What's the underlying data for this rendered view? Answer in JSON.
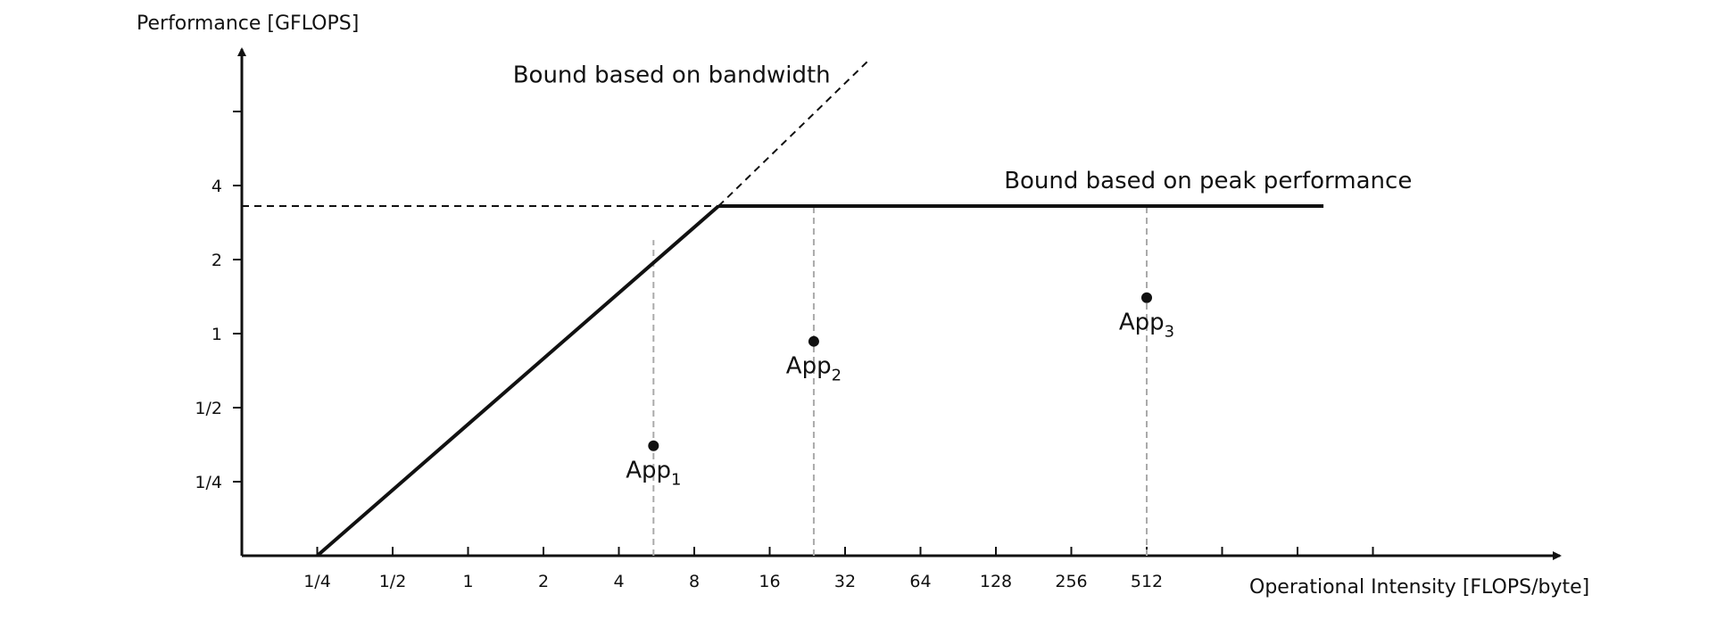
{
  "chart_data": {
    "type": "line",
    "title": "",
    "xlabel": "Operational Intensity [FLOPS/byte]",
    "ylabel": "Performance [GFLOPS]",
    "x_scale": "log2",
    "y_scale": "log2",
    "x_ticks": [
      "1/4",
      "1/2",
      "1",
      "2",
      "4",
      "8",
      "16",
      "32",
      "64",
      "128",
      "256",
      "512"
    ],
    "x_tick_values": [
      0.25,
      0.5,
      1,
      2,
      4,
      8,
      16,
      32,
      64,
      128,
      256,
      512
    ],
    "y_ticks": [
      "1/4",
      "1/2",
      "1",
      "2",
      "4"
    ],
    "y_tick_values": [
      0.25,
      0.5,
      1,
      2,
      4
    ],
    "xlim": [
      0.125,
      4096
    ],
    "ylim": [
      0.125,
      16
    ],
    "grid": false,
    "series": [
      {
        "name": "Bound based on bandwidth",
        "style": "solid",
        "points": [
          [
            0.25,
            0.125
          ],
          [
            10,
            3.3
          ]
        ]
      },
      {
        "name": "Bound based on bandwidth",
        "style": "dashed",
        "points": [
          [
            10,
            3.3
          ],
          [
            40,
            13
          ]
        ]
      },
      {
        "name": "Bound based on peak performance",
        "style": "solid",
        "points": [
          [
            10,
            3.3
          ],
          [
            2600,
            3.3
          ]
        ]
      },
      {
        "name": "",
        "style": "dashed",
        "points": [
          [
            0.125,
            3.3
          ],
          [
            10,
            3.3
          ]
        ]
      }
    ],
    "annotations": [
      {
        "text": "Bound based on bandwidth",
        "x": 6.5,
        "y": 10.5
      },
      {
        "text": "Bound based on peak performance",
        "x": 900,
        "y": 3.9
      }
    ],
    "apps": [
      {
        "label": "App",
        "sub": "1",
        "x": 5.5,
        "y": 0.35,
        "bound": 2.4
      },
      {
        "label": "App",
        "sub": "2",
        "x": 24,
        "y": 0.93,
        "bound": 3.3
      },
      {
        "label": "App",
        "sub": "3",
        "x": 512,
        "y": 1.4,
        "bound": 3.3
      }
    ]
  }
}
